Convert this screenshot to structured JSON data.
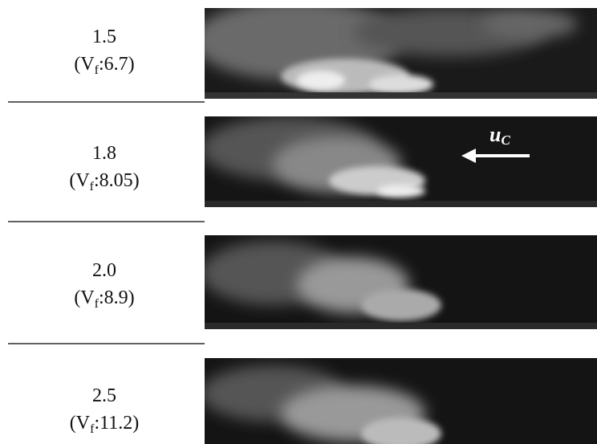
{
  "rows": [
    {
      "value": "1.5",
      "open": "(V",
      "subscript": "f",
      "rest": ":6.7)"
    },
    {
      "value": "1.8",
      "open": "(V",
      "subscript": "f",
      "rest": ":8.05)"
    },
    {
      "value": "2.0",
      "open": "(V",
      "subscript": "f",
      "rest": ":8.9)"
    },
    {
      "value": "2.5",
      "open": "(V",
      "subscript": "f",
      "rest": ":11.2)"
    }
  ],
  "annotation": {
    "text": "u",
    "subscript": "C"
  }
}
